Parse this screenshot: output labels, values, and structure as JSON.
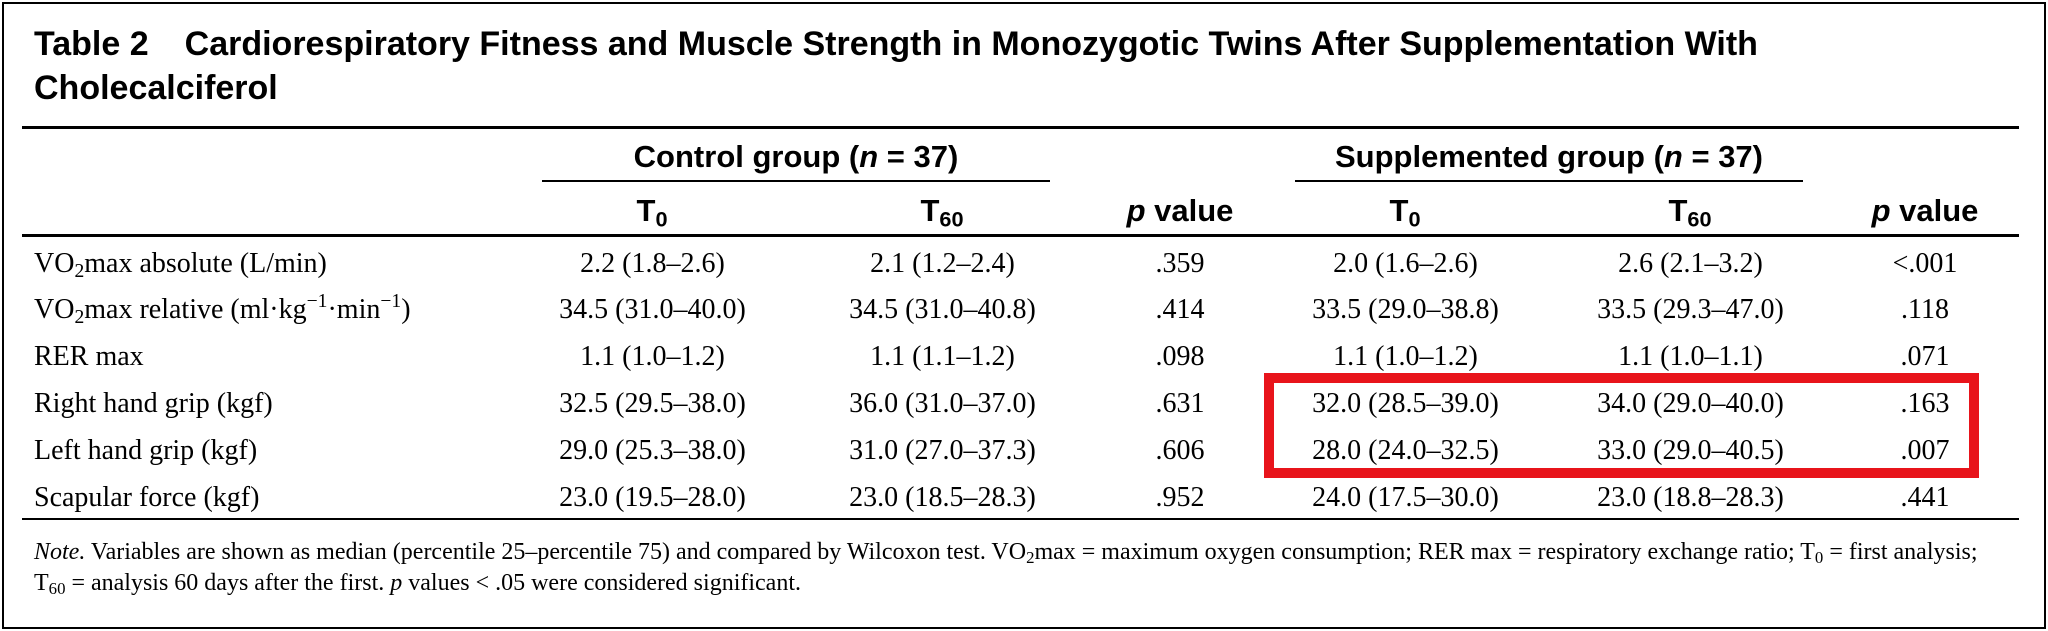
{
  "table": {
    "number": "Table 2",
    "title": "Cardiorespiratory Fitness and Muscle Strength in Monozygotic Twins After Supplementation With Cholecalciferol",
    "group_headers": [
      {
        "label": "Control group",
        "n_text": "(n = 37)"
      },
      {
        "label": "Supplemented group",
        "n_text": "(n = 37)"
      }
    ],
    "column_headers": {
      "t0_base": "T",
      "t0_sub": "0",
      "t60_base": "T",
      "t60_sub": "60",
      "p_italic": "p",
      "p_rest": " value"
    },
    "rows": [
      {
        "label_parts": [
          "VO",
          "2",
          "max absolute (L/min)"
        ],
        "control_t0": "2.2 (1.8–2.6)",
        "control_t60": "2.1 (1.2–2.4)",
        "control_p": ".359",
        "supp_t0": "2.0 (1.6–2.6)",
        "supp_t60": "2.6 (2.1–3.2)",
        "supp_p": "<.001"
      },
      {
        "label_parts": [
          "VO",
          "2",
          "max relative (ml·kg",
          "−1",
          "·min",
          "−1",
          ")"
        ],
        "control_t0": "34.5 (31.0–40.0)",
        "control_t60": "34.5 (31.0–40.8)",
        "control_p": ".414",
        "supp_t0": "33.5 (29.0–38.8)",
        "supp_t60": "33.5 (29.3–47.0)",
        "supp_p": ".118"
      },
      {
        "label": "RER max",
        "control_t0": "1.1 (1.0–1.2)",
        "control_t60": "1.1 (1.1–1.2)",
        "control_p": ".098",
        "supp_t0": "1.1 (1.0–1.2)",
        "supp_t60": "1.1 (1.0–1.1)",
        "supp_p": ".071"
      },
      {
        "label": "Right hand grip (kgf)",
        "control_t0": "32.5 (29.5–38.0)",
        "control_t60": "36.0 (31.0–37.0)",
        "control_p": ".631",
        "supp_t0": "32.0 (28.5–39.0)",
        "supp_t60": "34.0 (29.0–40.0)",
        "supp_p": ".163"
      },
      {
        "label": "Left hand grip (kgf)",
        "control_t0": "29.0 (25.3–38.0)",
        "control_t60": "31.0 (27.0–37.3)",
        "control_p": ".606",
        "supp_t0": "28.0 (24.0–32.5)",
        "supp_t60": "33.0 (29.0–40.5)",
        "supp_p": ".007"
      },
      {
        "label": "Scapular force (kgf)",
        "control_t0": "23.0 (19.5–28.0)",
        "control_t60": "23.0 (18.5–28.3)",
        "control_p": ".952",
        "supp_t0": "24.0 (17.5–30.0)",
        "supp_t60": "23.0 (18.8–28.3)",
        "supp_p": ".441"
      }
    ],
    "note": {
      "lead": "Note.",
      "s1": " Variables are shown as median (percentile 25–percentile 75) and compared by Wilcoxon test. VO",
      "s1_sub": "2",
      "s2": "max = maximum oxygen consumption; RER max = respiratory exchange ratio; T",
      "s2_sub": "0",
      "s3": " = first analysis; T",
      "s3_sub": "60",
      "s4": " = analysis 60 days after the first. ",
      "s4_p": "p",
      "s5": " values < .05 were considered significant."
    }
  },
  "colors": {
    "highlight": "#e8141b",
    "text": "#000000"
  }
}
